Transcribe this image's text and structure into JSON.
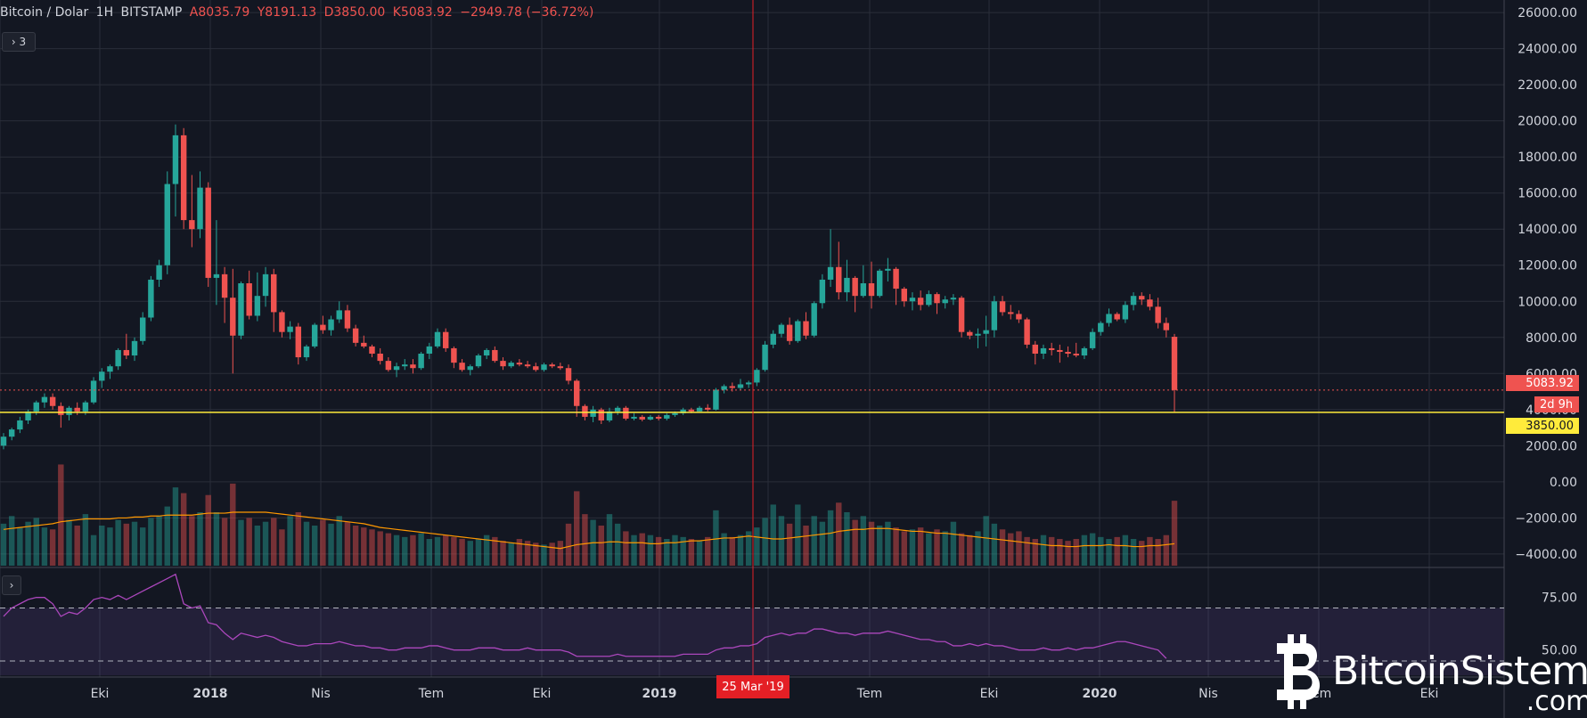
{
  "header": {
    "symbol": "Bitcoin / Dolar",
    "interval": "1H",
    "exchange": "BITSTAMP",
    "open": "A8035.79",
    "high": "Y8191.13",
    "low": "D3850.00",
    "close": "K5083.92",
    "change": "−2949.78 (−36.72%)",
    "collapse_label": "› 3",
    "collapse_label_2": "›"
  },
  "price_tags": {
    "close": "5083.92",
    "countdown": "2d 9h",
    "line": "3850.00"
  },
  "crosshair_date": "25 Mar '19",
  "watermark": {
    "brand": "BitcoinSistemi",
    "domain": ".com"
  },
  "colors": {
    "bull": "#26a69a",
    "bear": "#ef5350",
    "ma": "#ff9800",
    "rsi": "#ab47bc",
    "hline": "#ffeb3b"
  },
  "chart_data": [
    {
      "type": "candlestick",
      "yaxis": {
        "ylim": [
          -4500,
          26500
        ],
        "ticks": [
          "26000.00",
          "24000.00",
          "22000.00",
          "20000.00",
          "18000.00",
          "16000.00",
          "14000.00",
          "12000.00",
          "10000.00",
          "8000.00",
          "6000.00",
          "4000.00",
          "2000.00",
          "0.00",
          "−2000.00",
          "−4000.00"
        ]
      },
      "xaxis": {
        "labels": [
          "Eki",
          "2018",
          "Nis",
          "Tem",
          "Eki",
          "2019",
          "Tem",
          "Eki",
          "2020",
          "Nis",
          "Tem",
          "Eki"
        ]
      },
      "horizontal_line": 3850,
      "close_line": 5083.92,
      "ohlc": [
        [
          2000,
          2700,
          1800,
          2500
        ],
        [
          2500,
          3000,
          2300,
          2900
        ],
        [
          2900,
          3600,
          2700,
          3400
        ],
        [
          3400,
          4000,
          3200,
          3900
        ],
        [
          3900,
          4500,
          3700,
          4400
        ],
        [
          4400,
          4900,
          4100,
          4700
        ],
        [
          4700,
          4900,
          4000,
          4200
        ],
        [
          4200,
          4400,
          3000,
          3700
        ],
        [
          3700,
          4200,
          3400,
          4100
        ],
        [
          4100,
          4400,
          3700,
          3900
        ],
        [
          3900,
          4500,
          3700,
          4400
        ],
        [
          4400,
          5800,
          4300,
          5600
        ],
        [
          5600,
          6300,
          5200,
          6100
        ],
        [
          6100,
          6500,
          5700,
          6400
        ],
        [
          6400,
          7400,
          6200,
          7300
        ],
        [
          7300,
          8200,
          6800,
          7000
        ],
        [
          7000,
          8000,
          6700,
          7800
        ],
        [
          7800,
          9400,
          7600,
          9100
        ],
        [
          9100,
          11400,
          8900,
          11200
        ],
        [
          11200,
          12300,
          10800,
          12000
        ],
        [
          12000,
          17200,
          11500,
          16500
        ],
        [
          16500,
          19800,
          14700,
          19200
        ],
        [
          19200,
          19600,
          14000,
          14500
        ],
        [
          14500,
          17000,
          13000,
          14000
        ],
        [
          14000,
          17200,
          13500,
          16300
        ],
        [
          16300,
          16600,
          10800,
          11300
        ],
        [
          11300,
          14500,
          9800,
          11500
        ],
        [
          11500,
          11900,
          8800,
          10200
        ],
        [
          10200,
          11800,
          6000,
          8100
        ],
        [
          8100,
          11100,
          7900,
          11000
        ],
        [
          11000,
          11700,
          9000,
          9200
        ],
        [
          9200,
          11600,
          8900,
          10300
        ],
        [
          10300,
          11900,
          9700,
          11500
        ],
        [
          11500,
          11800,
          8300,
          9400
        ],
        [
          9400,
          9500,
          8000,
          8300
        ],
        [
          8300,
          8900,
          7900,
          8600
        ],
        [
          8600,
          8800,
          6500,
          6900
        ],
        [
          6900,
          7600,
          6700,
          7500
        ],
        [
          7500,
          8800,
          7400,
          8700
        ],
        [
          8700,
          9200,
          8200,
          8400
        ],
        [
          8400,
          9200,
          8100,
          9000
        ],
        [
          9000,
          10000,
          8800,
          9500
        ],
        [
          9500,
          9800,
          8300,
          8500
        ],
        [
          8500,
          8700,
          7500,
          7700
        ],
        [
          7700,
          8100,
          7400,
          7500
        ],
        [
          7500,
          7600,
          6900,
          7100
        ],
        [
          7100,
          7400,
          6500,
          6700
        ],
        [
          6700,
          6900,
          6100,
          6200
        ],
        [
          6200,
          6600,
          5800,
          6400
        ],
        [
          6400,
          6800,
          6200,
          6500
        ],
        [
          6500,
          6800,
          6000,
          6300
        ],
        [
          6300,
          7200,
          6200,
          7100
        ],
        [
          7100,
          7700,
          6800,
          7500
        ],
        [
          7500,
          8500,
          7400,
          8300
        ],
        [
          8300,
          8500,
          7200,
          7400
        ],
        [
          7400,
          7500,
          6300,
          6600
        ],
        [
          6600,
          6800,
          6100,
          6200
        ],
        [
          6200,
          6500,
          5900,
          6400
        ],
        [
          6400,
          7100,
          6300,
          7000
        ],
        [
          7000,
          7400,
          6800,
          7300
        ],
        [
          7300,
          7500,
          6600,
          6700
        ],
        [
          6700,
          6900,
          6200,
          6400
        ],
        [
          6400,
          6700,
          6300,
          6600
        ],
        [
          6600,
          6800,
          6400,
          6500
        ],
        [
          6500,
          6700,
          6300,
          6400
        ],
        [
          6400,
          6600,
          6100,
          6200
        ],
        [
          6200,
          6600,
          6100,
          6500
        ],
        [
          6500,
          6600,
          6300,
          6400
        ],
        [
          6400,
          6600,
          6200,
          6300
        ],
        [
          6300,
          6500,
          5400,
          5600
        ],
        [
          5600,
          5700,
          3600,
          4200
        ],
        [
          4200,
          4300,
          3400,
          3600
        ],
        [
          3600,
          4200,
          3300,
          4000
        ],
        [
          4000,
          4100,
          3200,
          3400
        ],
        [
          3400,
          4100,
          3300,
          3900
        ],
        [
          3900,
          4200,
          3700,
          4100
        ],
        [
          4100,
          4200,
          3400,
          3500
        ],
        [
          3500,
          3800,
          3400,
          3600
        ],
        [
          3600,
          3700,
          3350,
          3450
        ],
        [
          3450,
          3700,
          3400,
          3600
        ],
        [
          3600,
          3700,
          3400,
          3500
        ],
        [
          3500,
          3800,
          3400,
          3700
        ],
        [
          3700,
          3900,
          3600,
          3800
        ],
        [
          3800,
          4100,
          3700,
          4000
        ],
        [
          4000,
          4100,
          3800,
          3900
        ],
        [
          3900,
          4200,
          3900,
          4100
        ],
        [
          4100,
          4300,
          3900,
          4000
        ],
        [
          4000,
          5200,
          3950,
          5100
        ],
        [
          5100,
          5400,
          4900,
          5300
        ],
        [
          5300,
          5500,
          5000,
          5200
        ],
        [
          5200,
          5700,
          5100,
          5400
        ],
        [
          5400,
          5600,
          5200,
          5500
        ],
        [
          5500,
          6300,
          5300,
          6200
        ],
        [
          6200,
          7800,
          6100,
          7600
        ],
        [
          7600,
          8400,
          7400,
          8200
        ],
        [
          8200,
          8800,
          8000,
          8700
        ],
        [
          8700,
          9100,
          7600,
          7800
        ],
        [
          7800,
          9000,
          7700,
          8900
        ],
        [
          8900,
          9400,
          7900,
          8100
        ],
        [
          8100,
          10000,
          8000,
          9900
        ],
        [
          9900,
          11500,
          9600,
          11200
        ],
        [
          11200,
          14000,
          10800,
          11900
        ],
        [
          11900,
          13300,
          10100,
          10500
        ],
        [
          10500,
          12300,
          10000,
          11300
        ],
        [
          11300,
          11400,
          9400,
          10300
        ],
        [
          10300,
          12000,
          10200,
          11000
        ],
        [
          11000,
          12200,
          9600,
          10300
        ],
        [
          10300,
          11800,
          10200,
          11700
        ],
        [
          11700,
          12400,
          11100,
          11800
        ],
        [
          11800,
          11900,
          9800,
          10700
        ],
        [
          10700,
          10800,
          9700,
          10000
        ],
        [
          10000,
          10500,
          9500,
          10200
        ],
        [
          10200,
          10600,
          9500,
          9800
        ],
        [
          9800,
          10600,
          9700,
          10400
        ],
        [
          10400,
          10500,
          9300,
          9900
        ],
        [
          9900,
          10300,
          9600,
          10100
        ],
        [
          10100,
          10400,
          9800,
          10200
        ],
        [
          10200,
          10300,
          8000,
          8300
        ],
        [
          8300,
          8400,
          7900,
          8100
        ],
        [
          8100,
          8500,
          7400,
          8200
        ],
        [
          8200,
          9200,
          7500,
          8400
        ],
        [
          8400,
          10300,
          8000,
          10000
        ],
        [
          10000,
          10300,
          9200,
          9400
        ],
        [
          9400,
          9800,
          9000,
          9300
        ],
        [
          9300,
          9500,
          8800,
          9000
        ],
        [
          9000,
          9100,
          7400,
          7600
        ],
        [
          7600,
          7800,
          6500,
          7100
        ],
        [
          7100,
          7600,
          6800,
          7400
        ],
        [
          7400,
          7700,
          7000,
          7300
        ],
        [
          7300,
          7600,
          6600,
          7200
        ],
        [
          7200,
          7500,
          6900,
          7100
        ],
        [
          7100,
          7700,
          6900,
          7000
        ],
        [
          7000,
          7500,
          6800,
          7400
        ],
        [
          7400,
          8500,
          7300,
          8300
        ],
        [
          8300,
          8900,
          8100,
          8800
        ],
        [
          8800,
          9600,
          8600,
          9300
        ],
        [
          9300,
          9400,
          8900,
          9000
        ],
        [
          9000,
          10000,
          8800,
          9800
        ],
        [
          9800,
          10500,
          9500,
          10300
        ],
        [
          10300,
          10500,
          9800,
          10100
        ],
        [
          10100,
          10400,
          9500,
          9700
        ],
        [
          9700,
          10200,
          8500,
          8800
        ],
        [
          8800,
          9100,
          8000,
          8400
        ],
        [
          8035.79,
          8191.13,
          3850,
          5083.92
        ]
      ],
      "volume": [
        2200,
        2600,
        2000,
        2300,
        2500,
        2000,
        1900,
        5300,
        2400,
        2100,
        2700,
        1600,
        2100,
        2000,
        2400,
        2200,
        2300,
        2000,
        2500,
        2600,
        3100,
        4100,
        3800,
        2600,
        2800,
        3700,
        2800,
        2500,
        4300,
        2400,
        2500,
        2100,
        2300,
        2500,
        1900,
        2600,
        2800,
        2300,
        2100,
        2400,
        2200,
        2600,
        2300,
        2100,
        2000,
        1900,
        1800,
        1700,
        1600,
        1500,
        1600,
        1700,
        1400,
        1500,
        1600,
        1500,
        1400,
        1300,
        1400,
        1600,
        1500,
        1300,
        1200,
        1400,
        1300,
        1200,
        1100,
        1200,
        1300,
        2200,
        3900,
        2700,
        2400,
        2100,
        2700,
        2200,
        1800,
        1600,
        1700,
        1600,
        1500,
        1400,
        1600,
        1500,
        1400,
        1300,
        1500,
        2900,
        1700,
        1500,
        1600,
        1800,
        2000,
        2500,
        3200,
        2600,
        2200,
        3200,
        2100,
        2600,
        2300,
        2900,
        3300,
        2800,
        2400,
        2600,
        2300,
        2100,
        2300,
        2000,
        1800,
        1900,
        2000,
        1700,
        1900,
        1800,
        2300,
        1700,
        1600,
        1800,
        2600,
        2200,
        1900,
        1700,
        1800,
        1500,
        1400,
        1600,
        1500,
        1400,
        1300,
        1400,
        1600,
        1700,
        1500,
        1400,
        1500,
        1600,
        1400,
        1300,
        1500,
        1400,
        1600,
        3400
      ],
      "volume_ma": [
        1900,
        1950,
        2000,
        2050,
        2100,
        2150,
        2200,
        2300,
        2350,
        2400,
        2450,
        2450,
        2450,
        2450,
        2500,
        2500,
        2550,
        2550,
        2600,
        2600,
        2650,
        2650,
        2650,
        2650,
        2700,
        2750,
        2750,
        2750,
        2800,
        2800,
        2800,
        2800,
        2800,
        2750,
        2700,
        2650,
        2600,
        2550,
        2500,
        2450,
        2400,
        2350,
        2300,
        2250,
        2200,
        2100,
        2000,
        1950,
        1900,
        1850,
        1800,
        1750,
        1700,
        1650,
        1600,
        1550,
        1500,
        1450,
        1400,
        1350,
        1300,
        1250,
        1200,
        1150,
        1100,
        1050,
        1000,
        950,
        900,
        1000,
        1100,
        1150,
        1200,
        1200,
        1250,
        1250,
        1200,
        1200,
        1200,
        1150,
        1150,
        1200,
        1200,
        1250,
        1300,
        1300,
        1350,
        1400,
        1450,
        1450,
        1500,
        1550,
        1500,
        1450,
        1400,
        1400,
        1450,
        1500,
        1550,
        1600,
        1650,
        1700,
        1800,
        1850,
        1900,
        1900,
        1950,
        1950,
        1950,
        1900,
        1850,
        1800,
        1800,
        1750,
        1700,
        1700,
        1650,
        1600,
        1550,
        1500,
        1450,
        1400,
        1350,
        1300,
        1250,
        1200,
        1150,
        1100,
        1050,
        1050,
        1000,
        1000,
        1050,
        1050,
        1050,
        1100,
        1050,
        1050,
        1000,
        1000,
        1050,
        1050,
        1100,
        1150
      ]
    },
    {
      "type": "line",
      "name": "RSI",
      "ylim": [
        38,
        88
      ],
      "ticks": [
        "75.00",
        "50.00"
      ],
      "band": [
        30,
        70
      ],
      "values": [
        66,
        70,
        72,
        74,
        75,
        75,
        72,
        66,
        68,
        67,
        70,
        74,
        75,
        74,
        76,
        74,
        76,
        78,
        80,
        82,
        84,
        86,
        72,
        70,
        71,
        63,
        62,
        58,
        55,
        58,
        57,
        56,
        57,
        56,
        54,
        53,
        52,
        52,
        53,
        53,
        53,
        54,
        53,
        52,
        52,
        51,
        51,
        50,
        50,
        51,
        51,
        51,
        52,
        52,
        51,
        50,
        50,
        50,
        51,
        51,
        51,
        50,
        50,
        50,
        51,
        50,
        50,
        50,
        50,
        49,
        47,
        47,
        47,
        47,
        47,
        48,
        47,
        47,
        47,
        47,
        47,
        47,
        47,
        48,
        48,
        48,
        48,
        50,
        51,
        51,
        52,
        52,
        53,
        56,
        57,
        58,
        57,
        58,
        58,
        60,
        60,
        59,
        58,
        58,
        57,
        58,
        58,
        58,
        59,
        58,
        57,
        56,
        55,
        55,
        54,
        54,
        52,
        52,
        53,
        52,
        53,
        52,
        52,
        51,
        50,
        50,
        50,
        51,
        50,
        50,
        51,
        50,
        51,
        51,
        52,
        53,
        54,
        54,
        53,
        52,
        51,
        50,
        46
      ]
    }
  ]
}
